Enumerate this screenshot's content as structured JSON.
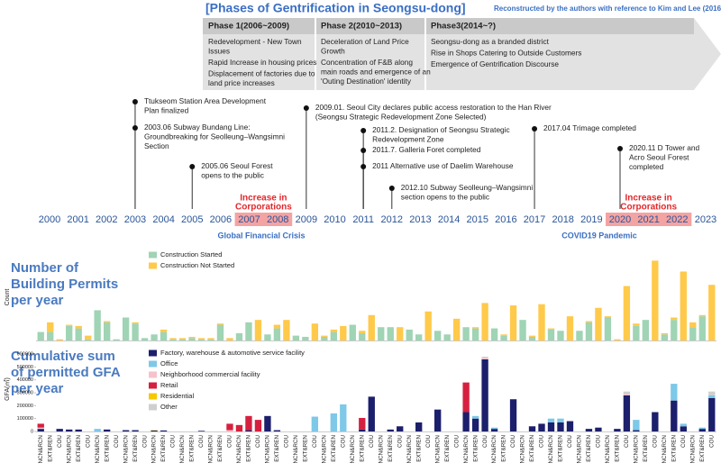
{
  "header": {
    "title": "[Phases of Gentrification in Seongsu-dong]",
    "subtitle": "Reconstructed by the authors with reference to Kim and Lee (2016)"
  },
  "phases": [
    {
      "title": "Phase 1(2006~2009)",
      "items": [
        [
          "Redevelopment - New Town",
          "Issues"
        ],
        [
          "Rapid Increase in housing prices"
        ],
        [
          "Displacement of factories due to",
          "land price increases"
        ]
      ]
    },
    {
      "title": "Phase 2(2010~2013)",
      "items": [
        [
          "Deceleration of Land Price",
          "Growth"
        ],
        [
          "Concentration of F&B along",
          "main roads and emergence of an",
          "'Outing Destination' identity"
        ]
      ]
    },
    {
      "title": "Phase3(2014~?)",
      "items": [
        [
          "Seongsu-dong as a branded district"
        ],
        [
          "Rise in Shops Catering to Outside Customers"
        ],
        [
          "Emergence of Gentrification Discourse"
        ]
      ]
    }
  ],
  "timeline": {
    "years": [
      2000,
      2001,
      2002,
      2003,
      2004,
      2005,
      2006,
      2007,
      2008,
      2009,
      2010,
      2011,
      2012,
      2013,
      2014,
      2015,
      2016,
      2017,
      2018,
      2019,
      2020,
      2021,
      2022,
      2023
    ],
    "events": [
      {
        "year": 2003,
        "lines": [
          "Ttukseom Station Area Development",
          "Plan finalized"
        ]
      },
      {
        "year": 2003,
        "lines": [
          "2003.06  Subway Bundang Line:",
          "Groundbreaking for Seolleung–Wangsimni",
          "Section"
        ]
      },
      {
        "year": 2005,
        "lines": [
          "2005.06  Seoul Forest",
          "opens to the public"
        ]
      },
      {
        "year": 2009,
        "lines": [
          "2009.01.    Seoul City declares public access restoration to the Han River",
          "(Seongsu Strategic Redevelopment Zone Selected)"
        ]
      },
      {
        "year": 2011,
        "lines": [
          "2011.2. Designation of Seongsu Strategic",
          "Redevelopment Zone"
        ]
      },
      {
        "year": 2011,
        "lines": [
          "2011.7. Galleria Foret completed"
        ]
      },
      {
        "year": 2011,
        "lines": [
          "2011 Alternative use of Daelim Warehouse"
        ]
      },
      {
        "year": 2012,
        "lines": [
          "2012.10  Subway Seolleung–Wangsimni",
          "section opens to the public"
        ]
      },
      {
        "year": 2017,
        "lines": [
          "2017.04 Trimage completed"
        ]
      },
      {
        "year": 2020,
        "lines": [
          "2020.11 D Tower and",
          "Acro Seoul Forest",
          "completed"
        ]
      }
    ],
    "highlights": [
      {
        "years": [
          2007,
          2008
        ],
        "lines": [
          "Increase in",
          "Corporations"
        ]
      },
      {
        "years": [
          2020,
          2022
        ],
        "lines": [
          "Increase in",
          "Corporations"
        ]
      }
    ],
    "captions": [
      "Global Financial Crisis",
      "COVID19 Pandemic"
    ]
  },
  "chart_data": [
    {
      "type": "bar",
      "stacked": true,
      "title_lines": [
        "Number of",
        "Building Permits",
        "per year"
      ],
      "ylabel": "Count",
      "ylim": [
        0,
        70
      ],
      "series": [
        {
          "name": "Construction Started",
          "color": "#9fd4b4",
          "values": [
            7,
            7,
            0,
            12,
            10,
            1,
            25,
            15,
            1,
            19,
            14,
            2,
            5,
            7,
            1,
            1,
            2,
            1,
            1,
            13,
            0,
            6,
            15,
            0,
            5,
            10,
            0,
            4,
            3,
            0,
            3,
            7,
            0,
            13,
            6,
            0,
            11,
            11,
            0,
            9,
            5,
            0,
            8,
            5,
            0,
            11,
            10,
            0,
            10,
            4,
            0,
            17,
            3,
            0,
            9,
            8,
            0,
            8,
            15,
            0,
            19,
            0,
            0,
            12,
            17,
            0,
            5,
            17,
            0,
            11,
            20,
            0
          ]
        },
        {
          "name": "Construction Not Started",
          "color": "#ffc94a",
          "values": [
            0,
            8,
            1,
            1,
            2,
            3,
            0,
            1,
            0,
            0,
            1,
            0,
            0,
            2,
            1,
            1,
            1,
            1,
            1,
            1,
            2,
            0,
            0,
            17,
            0,
            3,
            17,
            0,
            0,
            14,
            1,
            2,
            12,
            0,
            2,
            21,
            0,
            0,
            11,
            0,
            0,
            24,
            0,
            0,
            18,
            0,
            1,
            31,
            0,
            1,
            29,
            0,
            1,
            30,
            1,
            0,
            20,
            0,
            1,
            27,
            1,
            1,
            45,
            2,
            0,
            66,
            1,
            2,
            57,
            4,
            1,
            46
          ]
        }
      ]
    },
    {
      "type": "bar",
      "stacked": true,
      "title_lines": [
        "Cumulative sum",
        "of permitted GFA",
        "per year"
      ],
      "ylabel": "GFA(㎡)",
      "ylim": [
        0,
        650000
      ],
      "yticks": [
        0,
        100000,
        200000,
        300000,
        400000,
        500000,
        600000
      ],
      "categories": [
        "NCN&RCN",
        "EXT&REN",
        "COU",
        "NCN&RCN",
        "EXT&REN",
        "COU",
        "NCN&RCN",
        "EXT&REN",
        "COU",
        "NCN&RCN",
        "EXT&REN",
        "COU",
        "NCN&RCN",
        "EXT&REN",
        "COU",
        "NCN&RCN",
        "EXT&REN",
        "COU",
        "NCN&RCN",
        "EXT&REN",
        "COU",
        "NCN&RCN",
        "EXT&REN",
        "COU",
        "NCN&RCN",
        "EXT&REN",
        "COU",
        "NCN&RCN",
        "EXT&REN",
        "COU",
        "NCN&RCN",
        "EXT&REN",
        "COU",
        "NCN&RCN",
        "EXT&REN",
        "COU",
        "NCN&RCN",
        "EXT&REN",
        "COU",
        "NCN&RCN",
        "EXT&REN",
        "COU",
        "NCN&RCN",
        "EXT&REN",
        "COU",
        "NCN&RCN",
        "EXT&REN",
        "COU",
        "NCN&RCN",
        "EXT&REN",
        "COU",
        "NCN&RCN",
        "EXT&REN",
        "COU",
        "NCN&RCN",
        "EXT&REN",
        "COU",
        "NCN&RCN",
        "EXT&REN",
        "COU",
        "NCN&RCN",
        "EXT&REN",
        "COU",
        "NCN&RCN",
        "EXT&REN",
        "COU",
        "NCN&RCN",
        "EXT&REN",
        "COU",
        "NCN&RCN",
        "EXT&REN",
        "COU"
      ],
      "series": [
        {
          "name": "Factory, warehouse & automotive service facility",
          "color": "#1c1f6b",
          "values": [
            20000,
            0,
            20000,
            15000,
            15000,
            0,
            0,
            15000,
            0,
            10000,
            10000,
            0,
            8000,
            8000,
            0,
            0,
            0,
            5000,
            0,
            0,
            0,
            0,
            10000,
            0,
            120000,
            10000,
            0,
            0,
            0,
            0,
            0,
            0,
            0,
            0,
            15000,
            270000,
            0,
            15000,
            40000,
            0,
            70000,
            0,
            170000,
            0,
            0,
            150000,
            100000,
            560000,
            20000,
            0,
            250000,
            0,
            40000,
            60000,
            70000,
            70000,
            80000,
            0,
            20000,
            30000,
            0,
            20000,
            280000,
            10000,
            0,
            150000,
            0,
            240000,
            40000,
            0,
            20000,
            260000
          ]
        },
        {
          "name": "Office",
          "color": "#7ec8e8",
          "values": [
            0,
            0,
            0,
            0,
            0,
            0,
            20000,
            0,
            0,
            0,
            0,
            0,
            0,
            0,
            0,
            0,
            0,
            0,
            0,
            0,
            0,
            0,
            0,
            0,
            0,
            0,
            0,
            0,
            0,
            115000,
            0,
            140000,
            210000,
            0,
            0,
            0,
            0,
            0,
            0,
            0,
            0,
            0,
            0,
            0,
            0,
            0,
            20000,
            0,
            10000,
            0,
            0,
            0,
            0,
            0,
            30000,
            30000,
            0,
            0,
            0,
            0,
            0,
            0,
            0,
            80000,
            0,
            0,
            0,
            130000,
            20000,
            0,
            10000,
            20000
          ]
        },
        {
          "name": "Neighborhood commercial facility",
          "color": "#f6c3cb",
          "values": [
            10000,
            0,
            0,
            0,
            0,
            0,
            0,
            0,
            0,
            0,
            0,
            0,
            0,
            0,
            0,
            0,
            0,
            0,
            0,
            0,
            10000,
            0,
            0,
            0,
            0,
            0,
            0,
            0,
            0,
            0,
            0,
            0,
            0,
            0,
            0,
            0,
            0,
            0,
            0,
            0,
            0,
            0,
            0,
            0,
            0,
            0,
            0,
            10000,
            0,
            0,
            0,
            0,
            0,
            0,
            0,
            0,
            0,
            0,
            0,
            0,
            0,
            0,
            10000,
            0,
            0,
            0,
            0,
            0,
            0,
            0,
            0,
            0
          ]
        },
        {
          "name": "Retail",
          "color": "#d6203f",
          "values": [
            30000,
            0,
            0,
            0,
            0,
            0,
            0,
            0,
            0,
            0,
            0,
            0,
            0,
            0,
            0,
            0,
            0,
            0,
            0,
            0,
            50000,
            50000,
            110000,
            90000,
            0,
            0,
            0,
            0,
            0,
            0,
            0,
            0,
            0,
            0,
            90000,
            0,
            0,
            0,
            0,
            0,
            0,
            0,
            0,
            0,
            0,
            230000,
            0,
            0,
            0,
            0,
            0,
            0,
            0,
            0,
            0,
            0,
            0,
            0,
            0,
            0,
            0,
            0,
            0,
            0,
            0,
            0,
            0,
            0,
            0,
            0,
            0,
            0
          ]
        },
        {
          "name": "Residential",
          "color": "#f5c800",
          "values": [
            0,
            0,
            0,
            0,
            0,
            0,
            0,
            0,
            0,
            0,
            0,
            0,
            3000,
            0,
            0,
            0,
            0,
            0,
            0,
            0,
            0,
            0,
            0,
            0,
            0,
            0,
            0,
            0,
            0,
            0,
            0,
            0,
            0,
            0,
            0,
            0,
            0,
            0,
            0,
            0,
            0,
            0,
            0,
            0,
            0,
            0,
            0,
            0,
            0,
            0,
            0,
            0,
            0,
            0,
            0,
            0,
            0,
            0,
            0,
            0,
            0,
            0,
            0,
            0,
            0,
            0,
            0,
            0,
            0,
            0,
            0,
            0
          ]
        },
        {
          "name": "Other",
          "color": "#cfcfcf",
          "values": [
            0,
            0,
            0,
            0,
            0,
            0,
            0,
            0,
            0,
            0,
            0,
            0,
            0,
            0,
            0,
            0,
            0,
            0,
            0,
            0,
            0,
            0,
            0,
            0,
            0,
            0,
            0,
            0,
            0,
            0,
            0,
            0,
            0,
            0,
            0,
            0,
            0,
            0,
            0,
            0,
            0,
            0,
            0,
            0,
            0,
            0,
            0,
            10000,
            0,
            0,
            0,
            0,
            0,
            0,
            0,
            0,
            0,
            0,
            0,
            0,
            0,
            0,
            20000,
            0,
            0,
            0,
            0,
            0,
            0,
            0,
            0,
            30000
          ]
        }
      ]
    }
  ]
}
